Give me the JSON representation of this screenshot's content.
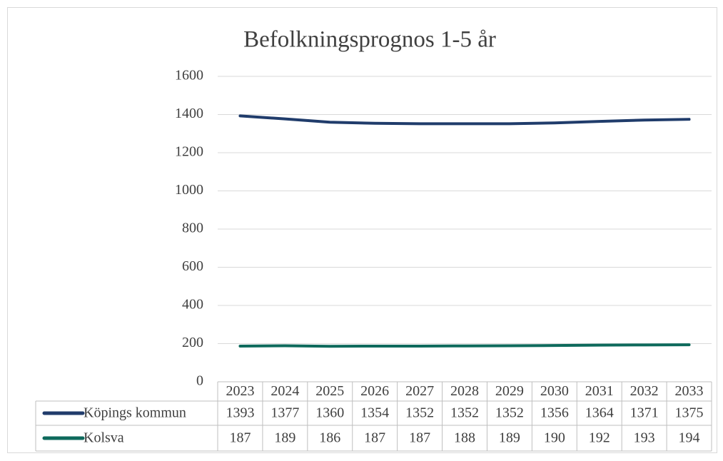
{
  "chart_data": {
    "type": "line",
    "title": "Befolkningsprognos 1-5 år",
    "categories": [
      "2023",
      "2024",
      "2025",
      "2026",
      "2027",
      "2028",
      "2029",
      "2030",
      "2031",
      "2032",
      "2033"
    ],
    "series": [
      {
        "name": "Köpings kommun",
        "color": "#203c6b",
        "values": [
          1393,
          1377,
          1360,
          1354,
          1352,
          1352,
          1352,
          1356,
          1364,
          1371,
          1375
        ]
      },
      {
        "name": "Kolsva",
        "color": "#0e6a5c",
        "values": [
          187,
          189,
          186,
          187,
          187,
          188,
          189,
          190,
          192,
          193,
          194
        ]
      }
    ],
    "ylim": [
      0,
      1600
    ],
    "yticks": [
      0,
      200,
      400,
      600,
      800,
      1000,
      1200,
      1400,
      1600
    ],
    "grid": true
  }
}
